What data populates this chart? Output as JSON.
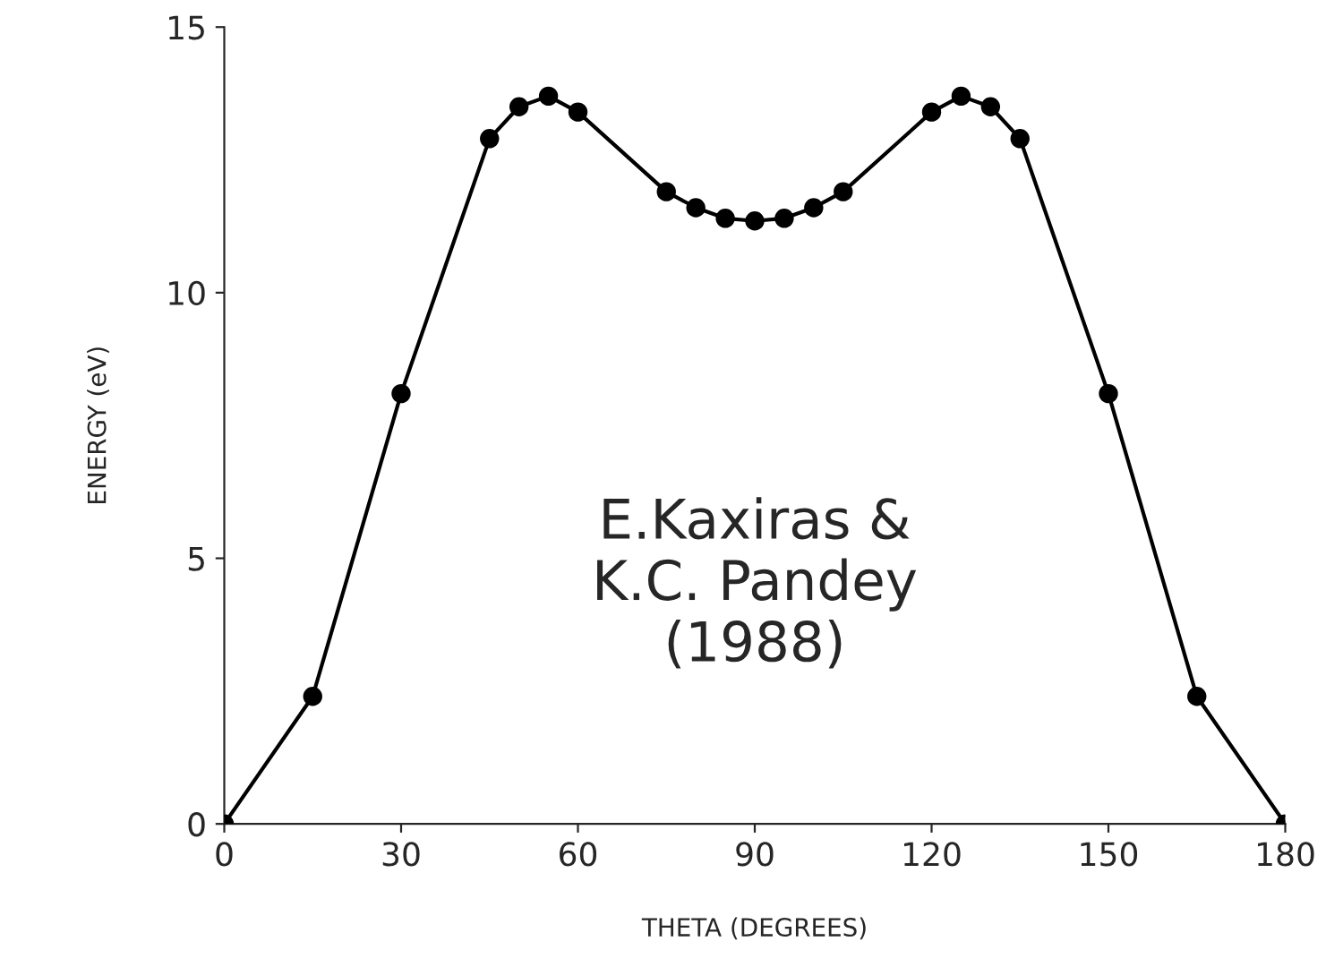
{
  "chart_data": {
    "type": "line",
    "xlabel": "THETA (DEGREES)",
    "ylabel": "ENERGY (eV)",
    "x": [
      0,
      15,
      30,
      45,
      50,
      55,
      60,
      75,
      80,
      85,
      90,
      95,
      100,
      105,
      120,
      125,
      130,
      135,
      150,
      165,
      180
    ],
    "series": [
      {
        "color": "#000000",
        "values": [
          0,
          2.4,
          8.1,
          12.9,
          13.5,
          13.7,
          13.4,
          11.9,
          11.6,
          11.4,
          11.35,
          11.4,
          11.6,
          11.9,
          13.4,
          13.7,
          13.5,
          12.9,
          8.1,
          2.4,
          0
        ]
      }
    ],
    "xlim": [
      0,
      180
    ],
    "ylim": [
      0,
      15
    ],
    "xticks": [
      0,
      30,
      60,
      90,
      120,
      150,
      180
    ],
    "yticks": [
      0,
      5,
      10,
      15
    ],
    "marker": "circle",
    "line_style": "solid",
    "grid": false,
    "legend": false,
    "annotations": [
      "E.Kaxiras &\nK.C. Pandey\n(1988)"
    ]
  }
}
